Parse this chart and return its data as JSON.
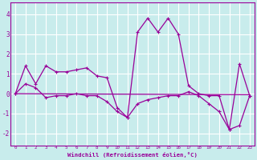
{
  "xlabel": "Windchill (Refroidissement éolien,°C)",
  "background_color": "#c8ecec",
  "line_color": "#990099",
  "grid_color": "#ffffff",
  "hours": [
    0,
    1,
    2,
    3,
    4,
    5,
    6,
    7,
    8,
    9,
    10,
    11,
    12,
    13,
    14,
    15,
    16,
    17,
    18,
    19,
    20,
    21,
    22,
    23
  ],
  "line1": [
    0.0,
    1.4,
    0.5,
    1.4,
    1.1,
    1.1,
    1.2,
    1.3,
    0.9,
    0.8,
    -0.7,
    -1.2,
    3.1,
    3.8,
    3.1,
    3.8,
    3.0,
    0.4,
    0.0,
    -0.1,
    -0.1,
    -1.8,
    1.5,
    -0.1
  ],
  "line2": [
    0.0,
    0.5,
    0.3,
    -0.2,
    -0.1,
    -0.1,
    0.0,
    -0.1,
    -0.1,
    -0.4,
    -0.9,
    -1.2,
    -0.5,
    -0.3,
    -0.2,
    -0.1,
    -0.1,
    0.1,
    -0.1,
    -0.5,
    -0.9,
    -1.8,
    -1.6,
    -0.1
  ],
  "trend_x": [
    0,
    23
  ],
  "trend_y": [
    0.0,
    -0.05
  ],
  "xlim": [
    -0.5,
    23.5
  ],
  "ylim": [
    -2.6,
    4.6
  ],
  "yticks": [
    -2,
    -1,
    0,
    1,
    2,
    3,
    4
  ],
  "xticks": [
    0,
    1,
    2,
    3,
    4,
    5,
    6,
    7,
    8,
    9,
    10,
    11,
    12,
    13,
    14,
    15,
    16,
    17,
    18,
    19,
    20,
    21,
    22,
    23
  ]
}
